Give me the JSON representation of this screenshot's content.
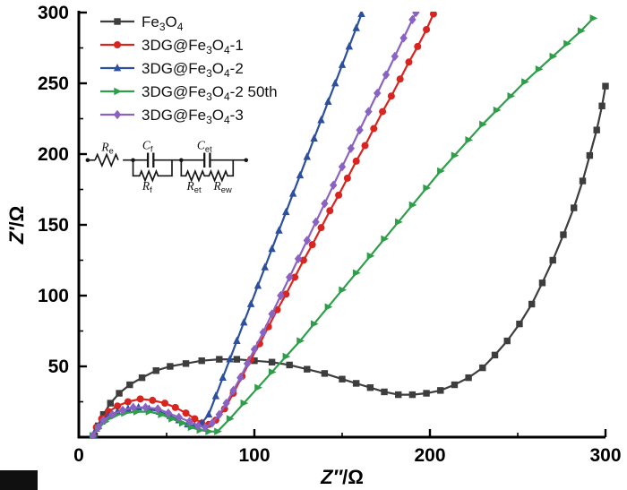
{
  "axes": {
    "xlabel": "Z″/Ω",
    "ylabel": "Z′/Ω"
  },
  "chart_data": {
    "type": "scatter",
    "title": "",
    "xlabel_var": "Z″",
    "xlabel_rest": "/Ω",
    "ylabel_var": "Z′",
    "ylabel_rest": "/Ω",
    "xlim": [
      0,
      300
    ],
    "ylim": [
      0,
      300
    ],
    "x_major_ticks": [
      0,
      100,
      200,
      300
    ],
    "x_minor_ticks": [
      50,
      150,
      250
    ],
    "y_major_ticks": [
      50,
      100,
      150,
      200,
      250,
      300
    ],
    "y_minor_ticks": [
      25,
      75,
      125,
      175,
      225,
      275
    ],
    "axis_color": "#000000",
    "grid": false,
    "legend_position": "top-left",
    "series": [
      {
        "id": "fe3o4",
        "label": "Fe₃O₄",
        "legend_parts": [
          {
            "t": "Fe"
          },
          {
            "t": "3",
            "sub": true
          },
          {
            "t": "O"
          },
          {
            "t": "4",
            "sub": true
          }
        ],
        "marker": "square",
        "color": "#3d3d3d",
        "points": [
          [
            9,
            1
          ],
          [
            11,
            8
          ],
          [
            14,
            16
          ],
          [
            18,
            24
          ],
          [
            23,
            31
          ],
          [
            29,
            37
          ],
          [
            36,
            42
          ],
          [
            44,
            47
          ],
          [
            52,
            50
          ],
          [
            61,
            52
          ],
          [
            70,
            54
          ],
          [
            80,
            55
          ],
          [
            90,
            55
          ],
          [
            100,
            54
          ],
          [
            110,
            53
          ],
          [
            120,
            51
          ],
          [
            130,
            48
          ],
          [
            140,
            45
          ],
          [
            150,
            41
          ],
          [
            158,
            38
          ],
          [
            166,
            35
          ],
          [
            174,
            32
          ],
          [
            182,
            30
          ],
          [
            190,
            30
          ],
          [
            198,
            31
          ],
          [
            206,
            33
          ],
          [
            214,
            37
          ],
          [
            222,
            42
          ],
          [
            230,
            49
          ],
          [
            237,
            58
          ],
          [
            244,
            68
          ],
          [
            251,
            80
          ],
          [
            258,
            94
          ],
          [
            264,
            109
          ],
          [
            270,
            125
          ],
          [
            276,
            143
          ],
          [
            282,
            162
          ],
          [
            287,
            181
          ],
          [
            291,
            199
          ],
          [
            295,
            217
          ],
          [
            298,
            234
          ],
          [
            300,
            248
          ]
        ]
      },
      {
        "id": "dg1",
        "label": "3DG@Fe₃O₄-1",
        "legend_parts": [
          {
            "t": "3DG@Fe"
          },
          {
            "t": "3",
            "sub": true
          },
          {
            "t": "O"
          },
          {
            "t": "4",
            "sub": true
          },
          {
            "t": "-1"
          }
        ],
        "marker": "circle",
        "color": "#da2420",
        "points": [
          [
            8,
            1
          ],
          [
            10,
            7
          ],
          [
            13,
            13
          ],
          [
            17,
            18
          ],
          [
            22,
            22
          ],
          [
            28,
            25
          ],
          [
            35,
            27
          ],
          [
            42,
            26
          ],
          [
            49,
            24
          ],
          [
            55,
            21
          ],
          [
            61,
            17
          ],
          [
            66,
            13
          ],
          [
            70,
            10
          ],
          [
            74,
            9
          ],
          [
            78,
            12
          ],
          [
            83,
            20
          ],
          [
            88,
            31
          ],
          [
            93,
            43
          ],
          [
            98,
            55
          ],
          [
            103,
            66
          ],
          [
            108,
            78
          ],
          [
            113,
            90
          ],
          [
            118,
            101
          ],
          [
            123,
            113
          ],
          [
            128,
            125
          ],
          [
            133,
            136
          ],
          [
            138,
            148
          ],
          [
            143,
            160
          ],
          [
            148,
            171
          ],
          [
            153,
            183
          ],
          [
            158,
            195
          ],
          [
            163,
            206
          ],
          [
            168,
            218
          ],
          [
            173,
            230
          ],
          [
            178,
            241
          ],
          [
            183,
            253
          ],
          [
            188,
            265
          ],
          [
            193,
            276
          ],
          [
            198,
            288
          ],
          [
            202,
            299
          ]
        ]
      },
      {
        "id": "dg2",
        "label": "3DG@Fe₃O₄-2",
        "legend_parts": [
          {
            "t": "3DG@Fe"
          },
          {
            "t": "3",
            "sub": true
          },
          {
            "t": "O"
          },
          {
            "t": "4",
            "sub": true
          },
          {
            "t": "-2"
          }
        ],
        "marker": "triangle-up",
        "color": "#2c4f9e",
        "points": [
          [
            8,
            1
          ],
          [
            10,
            6
          ],
          [
            13,
            11
          ],
          [
            17,
            15
          ],
          [
            22,
            18
          ],
          [
            28,
            20
          ],
          [
            34,
            21
          ],
          [
            40,
            20
          ],
          [
            46,
            18
          ],
          [
            52,
            15
          ],
          [
            57,
            12
          ],
          [
            62,
            9
          ],
          [
            66,
            8
          ],
          [
            70,
            10
          ],
          [
            74,
            16
          ],
          [
            78,
            29
          ],
          [
            82,
            42
          ],
          [
            86,
            55
          ],
          [
            90,
            68
          ],
          [
            94,
            81
          ],
          [
            98,
            94
          ],
          [
            102,
            107
          ],
          [
            106,
            120
          ],
          [
            110,
            133
          ],
          [
            114,
            146
          ],
          [
            118,
            159
          ],
          [
            122,
            172
          ],
          [
            126,
            185
          ],
          [
            130,
            198
          ],
          [
            134,
            211
          ],
          [
            138,
            224
          ],
          [
            142,
            237
          ],
          [
            146,
            250
          ],
          [
            150,
            263
          ],
          [
            154,
            276
          ],
          [
            158,
            289
          ],
          [
            161,
            299
          ]
        ]
      },
      {
        "id": "dg2_50th",
        "label": "3DG@Fe₃O₄-2 50th",
        "legend_parts": [
          {
            "t": "3DG@Fe"
          },
          {
            "t": "3",
            "sub": true
          },
          {
            "t": "O"
          },
          {
            "t": "4",
            "sub": true
          },
          {
            "t": "-2 50th"
          }
        ],
        "marker": "triangle-right",
        "color": "#2f9e4a",
        "points": [
          [
            8,
            1
          ],
          [
            11,
            6
          ],
          [
            15,
            11
          ],
          [
            20,
            15
          ],
          [
            26,
            17
          ],
          [
            33,
            18
          ],
          [
            40,
            18
          ],
          [
            47,
            16
          ],
          [
            53,
            13
          ],
          [
            59,
            10
          ],
          [
            64,
            7
          ],
          [
            69,
            5
          ],
          [
            74,
            4
          ],
          [
            79,
            4
          ],
          [
            86,
            13
          ],
          [
            94,
            24
          ],
          [
            102,
            35
          ],
          [
            110,
            46
          ],
          [
            118,
            57
          ],
          [
            126,
            68
          ],
          [
            134,
            80
          ],
          [
            142,
            92
          ],
          [
            150,
            104
          ],
          [
            158,
            116
          ],
          [
            166,
            128
          ],
          [
            174,
            140
          ],
          [
            182,
            152
          ],
          [
            190,
            164
          ],
          [
            198,
            176
          ],
          [
            206,
            188
          ],
          [
            214,
            199
          ],
          [
            222,
            210
          ],
          [
            230,
            221
          ],
          [
            238,
            231
          ],
          [
            246,
            241
          ],
          [
            254,
            251
          ],
          [
            262,
            260
          ],
          [
            270,
            269
          ],
          [
            278,
            278
          ],
          [
            286,
            287
          ],
          [
            293,
            296
          ]
        ]
      },
      {
        "id": "dg3",
        "label": "3DG@Fe₃O₄-3",
        "legend_parts": [
          {
            "t": "3DG@Fe"
          },
          {
            "t": "3",
            "sub": true
          },
          {
            "t": "O"
          },
          {
            "t": "4",
            "sub": true
          },
          {
            "t": "-3"
          }
        ],
        "marker": "diamond",
        "color": "#8a63c2",
        "points": [
          [
            8,
            1
          ],
          [
            11,
            7
          ],
          [
            14,
            12
          ],
          [
            19,
            16
          ],
          [
            25,
            19
          ],
          [
            31,
            21
          ],
          [
            38,
            21
          ],
          [
            45,
            20
          ],
          [
            51,
            17
          ],
          [
            57,
            14
          ],
          [
            63,
            11
          ],
          [
            68,
            8
          ],
          [
            72,
            7
          ],
          [
            76,
            10
          ],
          [
            80,
            16
          ],
          [
            84,
            24
          ],
          [
            88,
            33
          ],
          [
            92,
            42
          ],
          [
            96,
            52
          ],
          [
            100,
            62
          ],
          [
            105,
            74
          ],
          [
            110,
            87
          ],
          [
            115,
            100
          ],
          [
            120,
            113
          ],
          [
            125,
            126
          ],
          [
            130,
            139
          ],
          [
            135,
            152
          ],
          [
            140,
            165
          ],
          [
            145,
            178
          ],
          [
            150,
            191
          ],
          [
            155,
            204
          ],
          [
            160,
            217
          ],
          [
            165,
            230
          ],
          [
            170,
            243
          ],
          [
            175,
            256
          ],
          [
            180,
            269
          ],
          [
            185,
            282
          ],
          [
            190,
            295
          ],
          [
            192,
            300
          ]
        ]
      }
    ]
  },
  "circuit": {
    "labels": {
      "re": {
        "main": "R",
        "sub": "e"
      },
      "cf": {
        "main": "C",
        "sub": "f"
      },
      "rf": {
        "main": "R",
        "sub": "f"
      },
      "cet": {
        "main": "C",
        "sub": "et"
      },
      "ret": {
        "main": "R",
        "sub": "et"
      },
      "rew": {
        "main": "R",
        "sub": "ew"
      }
    }
  }
}
